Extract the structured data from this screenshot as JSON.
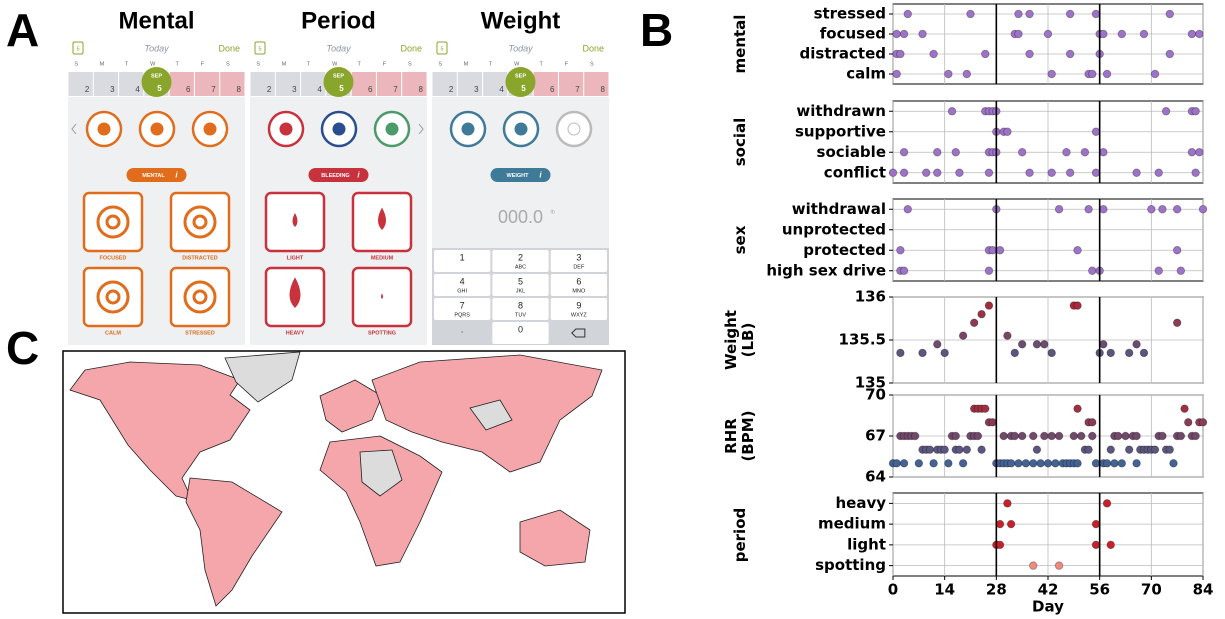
{
  "panel_labels": [
    "A",
    "B",
    "C"
  ],
  "app": {
    "today": "Today",
    "done": "Done",
    "badge": 5,
    "info": "i",
    "month": "SEP",
    "weekdays": [
      "S",
      "M",
      "T",
      "W",
      "T",
      "F",
      "S"
    ],
    "dates": [
      2,
      3,
      4,
      5,
      6,
      7,
      8
    ],
    "screens": [
      {
        "title": "Mental",
        "pill": "MENTAL",
        "tiles": [
          "FOCUSED",
          "DISTRACTED",
          "CALM",
          "STRESSED"
        ]
      },
      {
        "title": "Period",
        "pill": "BLEEDING",
        "tiles": [
          "LIGHT",
          "MEDIUM",
          "HEAVY",
          "SPOTTING"
        ]
      },
      {
        "title": "Weight",
        "pill": "WEIGHT",
        "display": "000.0",
        "unit": "lb",
        "keys": [
          {
            "label": "1"
          },
          {
            "label": "2",
            "letters": "ABC"
          },
          {
            "label": "3",
            "letters": "DEF"
          },
          {
            "label": "4",
            "letters": "GHI"
          },
          {
            "label": "5",
            "letters": "JKL"
          },
          {
            "label": "6",
            "letters": "MNO"
          },
          {
            "label": "7",
            "letters": "PQRS"
          },
          {
            "label": "8",
            "letters": "TUV"
          },
          {
            "label": "9",
            "letters": "WXYZ"
          },
          {
            "label": "."
          },
          {
            "label": "0"
          }
        ]
      }
    ]
  },
  "chart_data": [
    {
      "type": "strip",
      "ylabel": "mental",
      "color": "#9d72c8",
      "grid": true,
      "xlim": [
        0,
        84
      ],
      "xticks": [
        0,
        14,
        28,
        42,
        56,
        70,
        84
      ],
      "vlines": [
        28,
        56
      ],
      "series": [
        {
          "name": "stressed",
          "x": [
            4,
            21,
            34,
            37,
            48,
            55,
            75
          ]
        },
        {
          "name": "focused",
          "x": [
            1,
            3,
            8,
            33,
            34,
            42,
            56,
            57,
            62,
            68,
            81,
            83
          ]
        },
        {
          "name": "distracted",
          "x": [
            1,
            2,
            11,
            25,
            37,
            48,
            56,
            75
          ]
        },
        {
          "name": "calm",
          "x": [
            1,
            15,
            20,
            43,
            53,
            54,
            58,
            71
          ]
        }
      ]
    },
    {
      "type": "strip",
      "ylabel": "social",
      "color": "#9d72c8",
      "grid": true,
      "xlim": [
        0,
        84
      ],
      "xticks": [
        0,
        14,
        28,
        42,
        56,
        70,
        84
      ],
      "vlines": [
        28,
        56
      ],
      "series": [
        {
          "name": "withdrawn",
          "x": [
            16,
            25,
            26,
            27,
            28,
            74,
            81,
            82
          ]
        },
        {
          "name": "supportive",
          "x": [
            28,
            30,
            31,
            55
          ]
        },
        {
          "name": "sociable",
          "x": [
            3,
            12,
            17,
            26,
            27,
            28,
            35,
            47,
            52,
            57,
            81,
            83
          ]
        },
        {
          "name": "conflict",
          "x": [
            0,
            3,
            9,
            12,
            18,
            26,
            37,
            43,
            48,
            55,
            66,
            72,
            82
          ]
        }
      ]
    },
    {
      "type": "strip",
      "ylabel": "sex",
      "color": "#9d72c8",
      "grid": true,
      "xlim": [
        0,
        84
      ],
      "xticks": [
        0,
        14,
        28,
        42,
        56,
        70,
        84
      ],
      "vlines": [
        28,
        56
      ],
      "series": [
        {
          "name": "withdrawal",
          "x": [
            4,
            28,
            45,
            53,
            57,
            70,
            73,
            77,
            84
          ]
        },
        {
          "name": "unprotected",
          "x": []
        },
        {
          "name": "protected",
          "x": [
            2,
            26,
            27,
            29,
            50,
            77
          ]
        },
        {
          "name": "high sex drive",
          "x": [
            2,
            3,
            26,
            54,
            56,
            72,
            78
          ]
        }
      ]
    },
    {
      "type": "scatter",
      "ylabel": "Weight (LB)",
      "grid": true,
      "colormap": [
        "#2f6fa8",
        "#b5232d"
      ],
      "xlim": [
        0,
        84
      ],
      "xticks": [
        0,
        14,
        28,
        42,
        56,
        70,
        84
      ],
      "vlines": [
        28,
        56
      ],
      "ylim": [
        135,
        136
      ],
      "yticks": [
        135,
        135.5,
        136
      ],
      "x": [
        2,
        8,
        12,
        14,
        19,
        22,
        24,
        26,
        31,
        33,
        35,
        39,
        41,
        43,
        49,
        50,
        56,
        57,
        59,
        64,
        66,
        68,
        77
      ],
      "values": [
        135.35,
        135.35,
        135.45,
        135.35,
        135.55,
        135.7,
        135.8,
        135.9,
        135.55,
        135.35,
        135.45,
        135.45,
        135.45,
        135.35,
        135.9,
        135.9,
        135.35,
        135.45,
        135.35,
        135.35,
        135.45,
        135.35,
        135.7
      ]
    },
    {
      "type": "scatter",
      "ylabel": "RHR (BPM)",
      "grid": true,
      "colormap": [
        "#2f6fa8",
        "#b5232d"
      ],
      "xlim": [
        0,
        84
      ],
      "xticks": [
        0,
        14,
        28,
        42,
        56,
        70,
        84
      ],
      "vlines": [
        28,
        56
      ],
      "ylim": [
        64,
        70
      ],
      "yticks": [
        64,
        67,
        70
      ],
      "x": [
        0,
        1,
        3,
        7,
        11,
        15,
        19,
        28,
        29,
        30,
        31,
        32,
        34,
        36,
        38,
        40,
        42,
        44,
        46,
        47,
        48,
        49,
        50,
        55,
        57,
        58,
        60,
        62,
        66,
        76,
        8,
        9,
        10,
        12,
        13,
        14,
        17,
        18,
        20,
        24,
        39,
        52,
        53,
        59,
        64,
        67,
        68,
        69,
        70,
        71,
        74,
        75,
        2,
        3,
        4,
        5,
        6,
        16,
        17,
        21,
        22,
        23,
        30,
        32,
        33,
        35,
        38,
        41,
        43,
        45,
        49,
        51,
        54,
        60,
        61,
        63,
        65,
        66,
        72,
        73,
        77,
        78,
        81,
        82,
        26,
        27,
        53,
        54,
        80,
        83,
        84,
        22,
        23,
        24,
        25,
        50,
        79
      ],
      "values": [
        65,
        65,
        65,
        65,
        65,
        65,
        65,
        65,
        65,
        65,
        65,
        65,
        65,
        65,
        65,
        65,
        65,
        65,
        65,
        65,
        65,
        65,
        65,
        65,
        65,
        65,
        65,
        65,
        65,
        65,
        66,
        66,
        66,
        66,
        66,
        66,
        66,
        66,
        66,
        66,
        66,
        66,
        66,
        66,
        66,
        66,
        66,
        66,
        66,
        66,
        66,
        66,
        67,
        67,
        67,
        67,
        67,
        67,
        67,
        67,
        67,
        67,
        67,
        67,
        67,
        67,
        67,
        67,
        67,
        67,
        67,
        67,
        67,
        67,
        67,
        67,
        67,
        67,
        67,
        67,
        67,
        67,
        67,
        67,
        68,
        68,
        68,
        68,
        68,
        68,
        68,
        69,
        69,
        69,
        69,
        69,
        69
      ]
    },
    {
      "type": "strip",
      "ylabel": "period",
      "grid": true,
      "xlim": [
        0,
        84
      ],
      "xticks": [
        0,
        14,
        28,
        42,
        56,
        70,
        84
      ],
      "vlines": [
        28,
        56
      ],
      "xlabel": "Day",
      "series": [
        {
          "name": "heavy",
          "color": "#c8202a",
          "x": [
            31,
            58
          ]
        },
        {
          "name": "medium",
          "color": "#c8202a",
          "x": [
            29,
            32,
            55
          ]
        },
        {
          "name": "light",
          "color": "#c8202a",
          "x": [
            28,
            29,
            55,
            59
          ]
        },
        {
          "name": "spotting",
          "color": "#f08a80",
          "x": [
            38,
            45
          ]
        }
      ]
    }
  ]
}
